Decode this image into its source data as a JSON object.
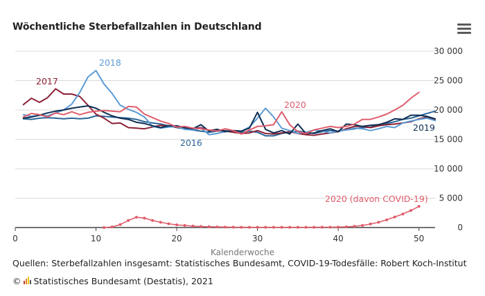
{
  "header": {
    "title": "Wöchentliche Sterbefallzahlen in Deutschland",
    "menu_icon": "hamburger-menu-icon"
  },
  "footer": {
    "source": "Quellen: Sterbefallzahlen insgesamt: Statistisches Bundesamt, COVID-19-Todesfälle: Robert Koch-Institut",
    "copyright_symbol": "©",
    "credit": "Statistisches Bundesamt (Destatis), 2021",
    "logo_icon": "destatis-logo-icon"
  },
  "chart_data": {
    "type": "line",
    "title": "Wöchentliche Sterbefallzahlen in Deutschland",
    "xlabel": "Kalenderwoche",
    "ylabel": "",
    "xlim": [
      0,
      52
    ],
    "ylim": [
      0,
      30000
    ],
    "x_ticks": [
      0,
      10,
      20,
      30,
      40,
      50
    ],
    "y_ticks": [
      0,
      5000,
      10000,
      15000,
      20000,
      25000,
      30000
    ],
    "y_tick_labels": [
      "0",
      "5 000",
      "10 000",
      "15 000",
      "20 000",
      "25 000",
      "30 000"
    ],
    "grid": "horizontal",
    "legend": "inline labels",
    "series": [
      {
        "name": "2016",
        "color": "#2a6496",
        "x": [
          1,
          2,
          3,
          4,
          5,
          6,
          7,
          8,
          9,
          10,
          11,
          12,
          13,
          14,
          15,
          16,
          17,
          18,
          19,
          20,
          21,
          22,
          23,
          24,
          25,
          26,
          27,
          28,
          29,
          30,
          31,
          32,
          33,
          34,
          35,
          36,
          37,
          38,
          39,
          40,
          41,
          42,
          43,
          44,
          45,
          46,
          47,
          48,
          49,
          50,
          51,
          52
        ],
        "values": [
          18500,
          18400,
          18600,
          18700,
          18600,
          18500,
          18600,
          18500,
          18600,
          19000,
          18900,
          18800,
          18700,
          18600,
          18400,
          18000,
          17800,
          17600,
          17300,
          17000,
          16800,
          16600,
          16400,
          16200,
          16400,
          16500,
          16300,
          16200,
          16400,
          16200,
          15600,
          15600,
          16000,
          16200,
          16400,
          16200,
          16000,
          16300,
          16500,
          16400,
          16600,
          16800,
          17000,
          17100,
          17500,
          17700,
          18000,
          18400,
          18600,
          19000,
          19400,
          19800
        ]
      },
      {
        "name": "2017",
        "color": "#8b2035",
        "x": [
          1,
          2,
          3,
          4,
          5,
          6,
          7,
          8,
          9,
          10,
          11,
          12,
          13,
          14,
          15,
          16,
          17,
          18,
          19,
          20,
          21,
          22,
          23,
          24,
          25,
          26,
          27,
          28,
          29,
          30,
          31,
          32,
          33,
          34,
          35,
          36,
          37,
          38,
          39,
          40,
          41,
          42,
          43,
          44,
          45,
          46,
          47,
          48,
          49,
          50,
          51,
          52
        ],
        "values": [
          20900,
          22000,
          21300,
          22100,
          23600,
          22700,
          22700,
          22300,
          20800,
          19300,
          18600,
          17700,
          17800,
          17000,
          16900,
          16800,
          17100,
          17400,
          17200,
          17100,
          17000,
          16800,
          17000,
          16500,
          16700,
          16400,
          16200,
          16000,
          16100,
          16500,
          16000,
          15900,
          16100,
          16300,
          16000,
          15800,
          15700,
          15900,
          16100,
          16300,
          16800,
          17200,
          17200,
          17000,
          17300,
          17500,
          17600,
          17800,
          18000,
          18500,
          18800,
          18300
        ]
      },
      {
        "name": "2018",
        "color": "#5b9bd5",
        "x": [
          1,
          2,
          3,
          4,
          5,
          6,
          7,
          8,
          9,
          10,
          11,
          12,
          13,
          14,
          15,
          16,
          17,
          18,
          19,
          20,
          21,
          22,
          23,
          24,
          25,
          26,
          27,
          28,
          29,
          30,
          31,
          32,
          33,
          34,
          35,
          36,
          37,
          38,
          39,
          40,
          41,
          42,
          43,
          44,
          45,
          46,
          47,
          48,
          49,
          50,
          51,
          52
        ],
        "values": [
          19200,
          18900,
          19100,
          19000,
          19500,
          20000,
          21000,
          23000,
          25600,
          26700,
          24400,
          22800,
          20800,
          20100,
          19600,
          18800,
          17200,
          16900,
          17100,
          17200,
          16700,
          16600,
          16900,
          15800,
          16000,
          16300,
          16500,
          16400,
          17100,
          18600,
          20300,
          18800,
          16900,
          16500,
          16000,
          16200,
          16600,
          16400,
          16100,
          16400,
          16600,
          16900,
          16800,
          16500,
          16800,
          17200,
          17000,
          17800,
          18100,
          18400,
          18600,
          18200
        ]
      },
      {
        "name": "2019",
        "color": "#0d2d52",
        "x": [
          1,
          2,
          3,
          4,
          5,
          6,
          7,
          8,
          9,
          10,
          11,
          12,
          13,
          14,
          15,
          16,
          17,
          18,
          19,
          20,
          21,
          22,
          23,
          24,
          25,
          26,
          27,
          28,
          29,
          30,
          31,
          32,
          33,
          34,
          35,
          36,
          37,
          38,
          39,
          40,
          41,
          42,
          43,
          44,
          45,
          46,
          47,
          48,
          49,
          50,
          51,
          52
        ],
        "values": [
          18600,
          18800,
          19100,
          19500,
          19800,
          20000,
          20300,
          20500,
          20700,
          20300,
          19600,
          19000,
          18600,
          18400,
          17900,
          17700,
          17300,
          17000,
          17300,
          17300,
          17000,
          16800,
          17500,
          16400,
          16700,
          16300,
          16500,
          16400,
          16900,
          19600,
          16700,
          16100,
          16500,
          15900,
          17600,
          16000,
          16100,
          16500,
          16800,
          16300,
          17600,
          17500,
          17200,
          17400,
          17500,
          17900,
          18500,
          18400,
          19100,
          19100,
          18900,
          18500
        ]
      },
      {
        "name": "2020",
        "color": "#e05c6b",
        "x": [
          1,
          2,
          3,
          4,
          5,
          6,
          7,
          8,
          9,
          10,
          11,
          12,
          13,
          14,
          15,
          16,
          17,
          18,
          19,
          20,
          21,
          22,
          23,
          24,
          25,
          26,
          27,
          28,
          29,
          30,
          31,
          32,
          33,
          34,
          35,
          36,
          37,
          38,
          39,
          40,
          41,
          42,
          43,
          44,
          45,
          46,
          47,
          48,
          49,
          50
        ],
        "values": [
          18800,
          19400,
          19200,
          18800,
          19500,
          19200,
          19700,
          19200,
          19600,
          19800,
          19900,
          19800,
          19700,
          20600,
          20500,
          19300,
          18700,
          18100,
          17700,
          17100,
          17200,
          16900,
          16800,
          16600,
          16400,
          16800,
          16500,
          15900,
          16600,
          17200,
          17300,
          17500,
          19700,
          17500,
          16300,
          16000,
          16600,
          16900,
          17200,
          17000,
          17200,
          17600,
          18400,
          18400,
          18800,
          19300,
          20000,
          20800,
          22000,
          23000
        ]
      },
      {
        "name": "2020 (davon COVID-19)",
        "color": "#e05c6b",
        "markers": true,
        "x": [
          11,
          12,
          13,
          14,
          15,
          16,
          17,
          18,
          19,
          20,
          21,
          22,
          23,
          24,
          25,
          26,
          27,
          28,
          29,
          30,
          31,
          32,
          33,
          34,
          35,
          36,
          37,
          38,
          39,
          40,
          41,
          42,
          43,
          44,
          45,
          46,
          47,
          48,
          49,
          50
        ],
        "values": [
          0,
          100,
          500,
          1200,
          1750,
          1600,
          1200,
          900,
          650,
          450,
          350,
          250,
          180,
          130,
          100,
          80,
          60,
          50,
          40,
          40,
          40,
          40,
          40,
          40,
          40,
          40,
          50,
          60,
          60,
          80,
          120,
          200,
          350,
          600,
          900,
          1300,
          1800,
          2300,
          2900,
          3600
        ]
      }
    ],
    "annotations": [
      {
        "text": "2016",
        "series": "2016"
      },
      {
        "text": "2017",
        "series": "2017"
      },
      {
        "text": "2018",
        "series": "2018"
      },
      {
        "text": "2019",
        "series": "2019"
      },
      {
        "text": "2020",
        "series": "2020"
      },
      {
        "text": "2020 (davon COVID-19)",
        "series": "2020 (davon COVID-19)"
      }
    ]
  }
}
